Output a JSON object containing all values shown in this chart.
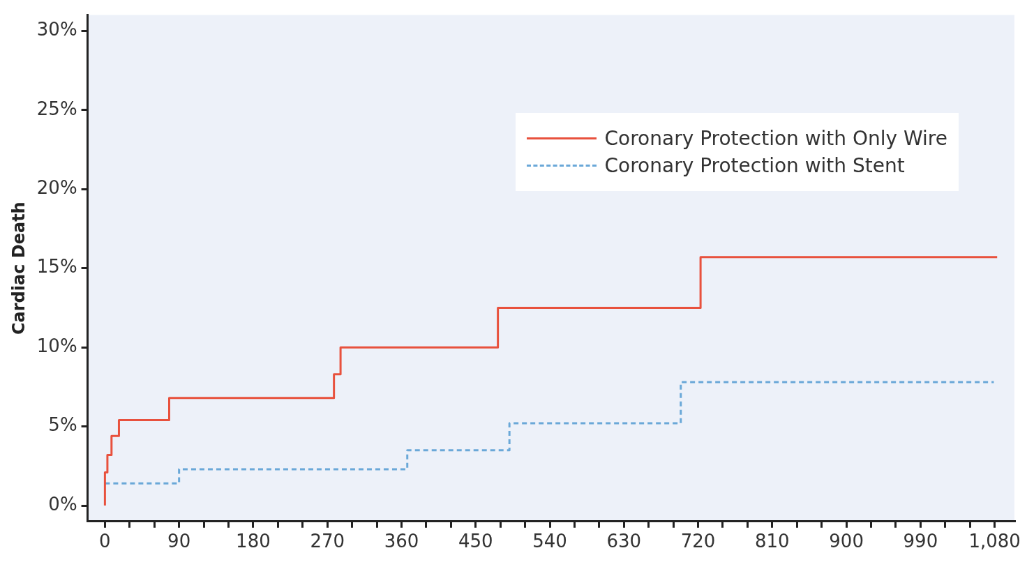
{
  "chart_data": {
    "type": "step",
    "ylabel": "Cardiac Death",
    "legend": "top right",
    "marker": "none",
    "xlim": [
      -21,
      1104
    ],
    "ylim": [
      -1,
      31
    ],
    "xticks": [
      {
        "value": 0,
        "label": "0"
      },
      {
        "value": 30,
        "label": null
      },
      {
        "value": 60,
        "label": null
      },
      {
        "value": 90,
        "label": "90"
      },
      {
        "value": 120,
        "label": null
      },
      {
        "value": 150,
        "label": null
      },
      {
        "value": 180,
        "label": "180"
      },
      {
        "value": 210,
        "label": null
      },
      {
        "value": 240,
        "label": null
      },
      {
        "value": 270,
        "label": "270"
      },
      {
        "value": 300,
        "label": null
      },
      {
        "value": 330,
        "label": null
      },
      {
        "value": 360,
        "label": "360"
      },
      {
        "value": 390,
        "label": null
      },
      {
        "value": 420,
        "label": null
      },
      {
        "value": 450,
        "label": "450"
      },
      {
        "value": 480,
        "label": null
      },
      {
        "value": 510,
        "label": null
      },
      {
        "value": 540,
        "label": "540"
      },
      {
        "value": 570,
        "label": null
      },
      {
        "value": 600,
        "label": null
      },
      {
        "value": 630,
        "label": "630"
      },
      {
        "value": 660,
        "label": null
      },
      {
        "value": 690,
        "label": null
      },
      {
        "value": 720,
        "label": "720"
      },
      {
        "value": 750,
        "label": null
      },
      {
        "value": 780,
        "label": null
      },
      {
        "value": 810,
        "label": "810"
      },
      {
        "value": 840,
        "label": null
      },
      {
        "value": 870,
        "label": null
      },
      {
        "value": 900,
        "label": "900"
      },
      {
        "value": 930,
        "label": null
      },
      {
        "value": 960,
        "label": null
      },
      {
        "value": 990,
        "label": "990"
      },
      {
        "value": 1020,
        "label": null
      },
      {
        "value": 1050,
        "label": null
      },
      {
        "value": 1080,
        "label": "1,080"
      }
    ],
    "yticks": [
      {
        "value": 0,
        "label": "0%"
      },
      {
        "value": 5,
        "label": "5%"
      },
      {
        "value": 10,
        "label": "10%"
      },
      {
        "value": 15,
        "label": "15%"
      },
      {
        "value": 20,
        "label": "20%"
      },
      {
        "value": 25,
        "label": "25%"
      },
      {
        "value": 30,
        "label": "30%"
      }
    ],
    "series": [
      {
        "name": "Coronary Protection with Only Wire",
        "color": "#e8513d",
        "line_style": "solid",
        "x": [
          0,
          0,
          3,
          8,
          17,
          78,
          278,
          286,
          477,
          723,
          1083
        ],
        "values": [
          0,
          2.1,
          3.2,
          4.4,
          5.4,
          6.8,
          8.3,
          10.0,
          12.5,
          15.7,
          15.7
        ]
      },
      {
        "name": "Coronary Protection with Stent",
        "color": "#6aa8d8",
        "line_style": "dashed",
        "x": [
          0,
          90,
          367,
          491,
          699,
          1079
        ],
        "values": [
          1.4,
          2.3,
          3.5,
          5.2,
          7.8,
          7.8
        ]
      }
    ]
  }
}
